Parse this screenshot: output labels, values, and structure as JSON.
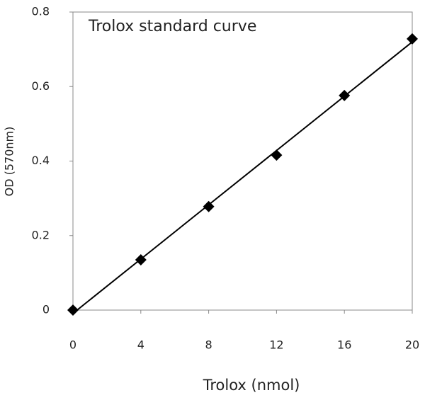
{
  "chart_data": {
    "type": "scatter",
    "title": "Trolox standard curve",
    "x_label": "Trolox (nmol)",
    "y_label": "OD (570nm)",
    "series": [
      {
        "name": "Trolox",
        "color": "#000000",
        "x": [
          0,
          4,
          8,
          12,
          16,
          20
        ],
        "values": [
          0,
          0.135,
          0.278,
          0.416,
          0.576,
          0.728
        ]
      }
    ],
    "trendline": "linear",
    "xlim": [
      0,
      20
    ],
    "xticks": [
      0,
      4,
      8,
      12,
      16,
      20
    ],
    "ylim": [
      0,
      0.8
    ],
    "yticks": [
      0,
      0.2,
      0.4,
      0.6,
      0.8
    ],
    "grid": false
  }
}
